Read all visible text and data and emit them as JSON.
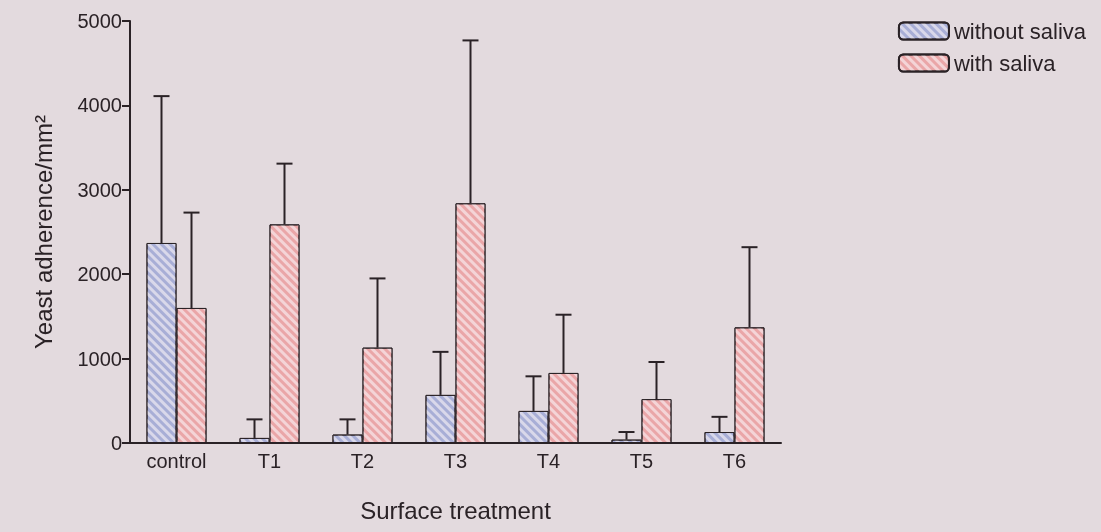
{
  "chart_data": {
    "type": "bar",
    "xlabel": "Surface treatment",
    "ylabel": "Yeast adherence/mm²",
    "categories": [
      "control",
      "T1",
      "T2",
      "T3",
      "T4",
      "T5",
      "T6"
    ],
    "series": [
      {
        "name": "without saliva",
        "color": "#a8aed6",
        "values": [
          2370,
          60,
          100,
          570,
          380,
          40,
          130
        ],
        "errors": [
          [
            2370,
            4110
          ],
          [
            60,
            280
          ],
          [
            100,
            280
          ],
          [
            570,
            1080
          ],
          [
            380,
            790
          ],
          [
            40,
            130
          ],
          [
            130,
            310
          ]
        ]
      },
      {
        "name": "with saliva",
        "color": "#eaa6a8",
        "values": [
          1600,
          2590,
          1130,
          2840,
          830,
          520,
          1370
        ],
        "errors": [
          [
            1600,
            2730
          ],
          [
            2590,
            3310
          ],
          [
            1130,
            1950
          ],
          [
            2840,
            4770
          ],
          [
            830,
            1520
          ],
          [
            520,
            960
          ],
          [
            1370,
            2320
          ]
        ]
      }
    ],
    "ylim": [
      0,
      5000
    ],
    "yticks": [
      0,
      1000,
      2000,
      3000,
      4000,
      5000
    ],
    "grid": false,
    "legend": "top right"
  }
}
